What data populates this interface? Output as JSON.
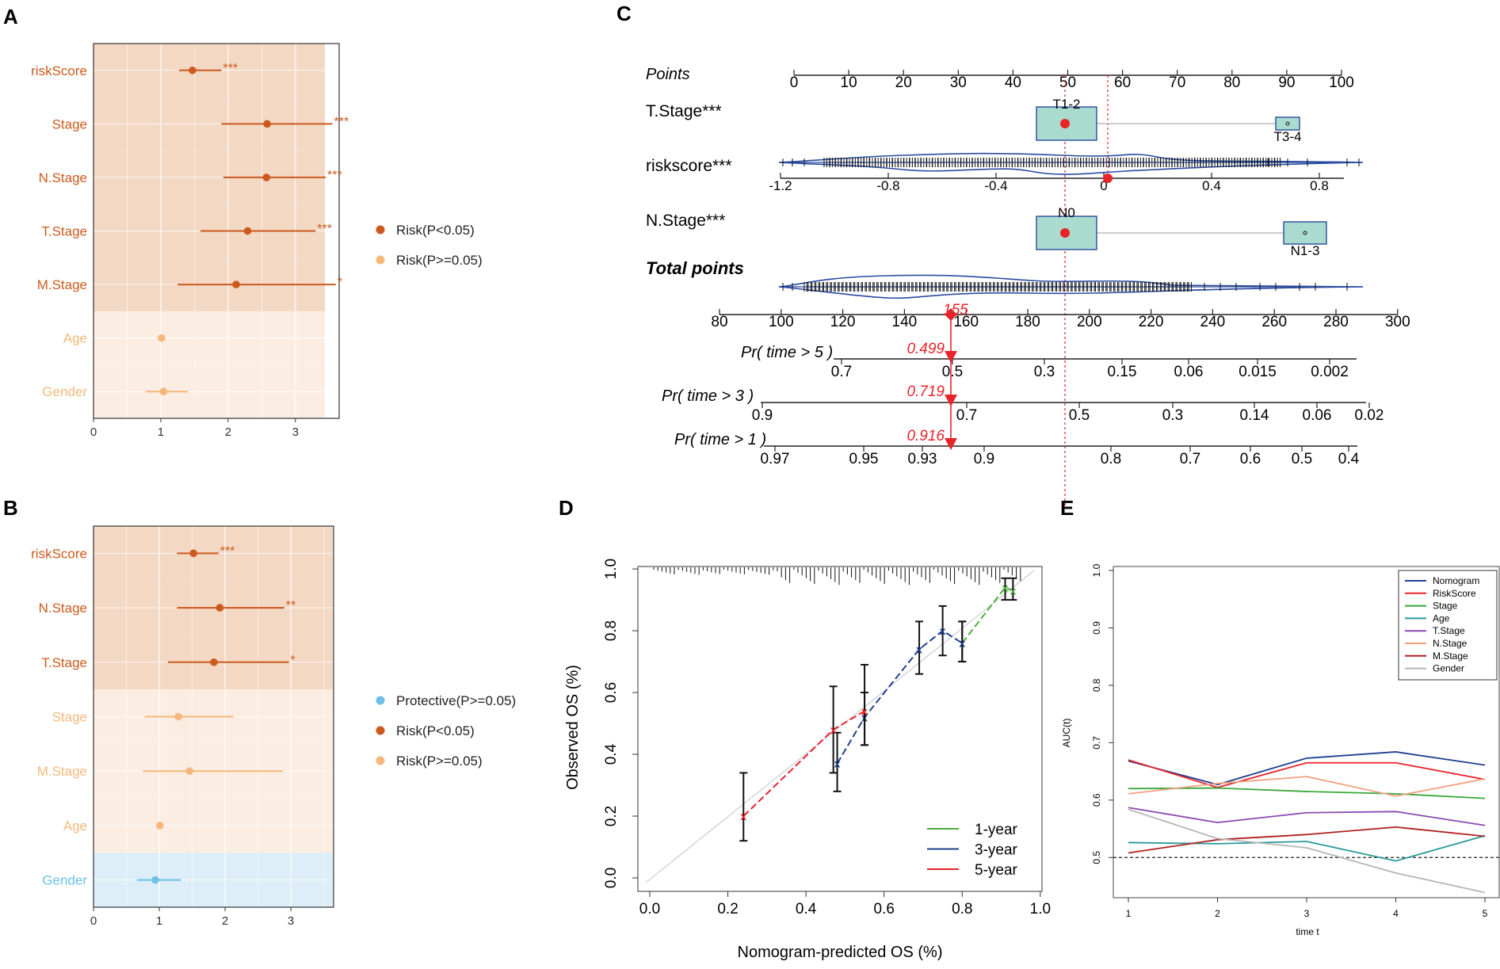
{
  "colors": {
    "risk": "#cc5a1e",
    "risk_ns": "#f5b87a",
    "protective": "#6fc0ea",
    "band_risk": "#f3d8c4",
    "band_ns": "#fbede2",
    "band_prot": "#ddeef8",
    "nomo_red": "#e8232a",
    "nomo_blue": "#2a4ba0",
    "box_fill": "#a9dccf"
  },
  "panel_a": {
    "letter": "A",
    "rows": [
      {
        "label": "riskScore",
        "hr": 1.47,
        "lo": 1.27,
        "hi": 1.9,
        "sig": "***",
        "group": "risk"
      },
      {
        "label": "Stage",
        "hr": 2.58,
        "lo": 1.9,
        "hi": 3.55,
        "sig": "***",
        "group": "risk"
      },
      {
        "label": "N.Stage",
        "hr": 2.57,
        "lo": 1.93,
        "hi": 3.45,
        "sig": "***",
        "group": "risk"
      },
      {
        "label": "T.Stage",
        "hr": 2.29,
        "lo": 1.59,
        "hi": 3.3,
        "sig": "***",
        "group": "risk"
      },
      {
        "label": "M.Stage",
        "hr": 2.12,
        "lo": 1.25,
        "hi": 3.6,
        "sig": "*",
        "group": "risk"
      },
      {
        "label": "Age",
        "hr": 1.01,
        "lo": 0.99,
        "hi": 1.02,
        "sig": "",
        "group": "risk_ns"
      },
      {
        "label": "Gender",
        "hr": 1.04,
        "lo": 0.78,
        "hi": 1.4,
        "sig": "",
        "group": "risk_ns"
      }
    ],
    "x_ticks": [
      "0",
      "1",
      "2",
      "3"
    ],
    "legend": [
      {
        "label": "Risk(P<0.05)",
        "group": "risk"
      },
      {
        "label": "Risk(P>=0.05)",
        "group": "risk_ns"
      }
    ]
  },
  "panel_b": {
    "letter": "B",
    "rows": [
      {
        "label": "riskScore",
        "hr": 1.52,
        "lo": 1.27,
        "hi": 1.9,
        "sig": "***",
        "group": "risk"
      },
      {
        "label": "N.Stage",
        "hr": 1.92,
        "lo": 1.27,
        "hi": 2.9,
        "sig": "**",
        "group": "risk"
      },
      {
        "label": "T.Stage",
        "hr": 1.83,
        "lo": 1.13,
        "hi": 2.97,
        "sig": "*",
        "group": "risk"
      },
      {
        "label": "Stage",
        "hr": 1.29,
        "lo": 0.78,
        "hi": 2.13,
        "sig": "",
        "group": "risk_ns"
      },
      {
        "label": "M.Stage",
        "hr": 1.46,
        "lo": 0.75,
        "hi": 2.88,
        "sig": "",
        "group": "risk_ns"
      },
      {
        "label": "Age",
        "hr": 1.01,
        "lo": 0.99,
        "hi": 1.03,
        "sig": "",
        "group": "risk_ns"
      },
      {
        "label": "Gender",
        "hr": 0.94,
        "lo": 0.66,
        "hi": 1.33,
        "sig": "",
        "group": "protective"
      }
    ],
    "x_ticks": [
      "0",
      "1",
      "2",
      "3"
    ],
    "legend": [
      {
        "label": "Protective(P>=0.05)",
        "group": "protective"
      },
      {
        "label": "Risk(P<0.05)",
        "group": "risk"
      },
      {
        "label": "Risk(P>=0.05)",
        "group": "risk_ns"
      }
    ]
  },
  "panel_c": {
    "letter": "C",
    "points_label": "Points",
    "points_ticks": [
      "0",
      "10",
      "20",
      "30",
      "40",
      "50",
      "60",
      "70",
      "80",
      "90",
      "100"
    ],
    "tstage_label": "T.Stage***",
    "tstage_levels": [
      "T1-2",
      "T3-4"
    ],
    "riskscore_label": "riskscore***",
    "riskscore_ticks": [
      "-1.2",
      "-0.8",
      "-0.4",
      "0",
      "0.4",
      "0.8"
    ],
    "nstage_label": "N.Stage***",
    "nstage_levels": [
      "N0",
      "N1-3"
    ],
    "total_label": "Total points",
    "total_ticks": [
      "80",
      "100",
      "120",
      "140",
      "160",
      "180",
      "200",
      "220",
      "240",
      "260",
      "280",
      "300"
    ],
    "total_value": "155",
    "prob_rows": [
      {
        "label": "Pr( time > 5 )",
        "value": "0.499",
        "ticks": [
          "0.7",
          "0.5",
          "0.3",
          "0.15",
          "0.06",
          "0.015",
          "0.002"
        ]
      },
      {
        "label": "Pr( time > 3 )",
        "value": "0.719",
        "ticks": [
          "0.9",
          "0.7",
          "0.5",
          "0.3",
          "0.14",
          "0.06",
          "0.02"
        ]
      },
      {
        "label": "Pr( time > 1 )",
        "value": "0.916",
        "ticks": [
          "0.97",
          "0.95",
          "0.93",
          "0.9",
          "0.8",
          "0.7",
          "0.6",
          "0.5",
          "0.4"
        ]
      }
    ]
  },
  "chart_data": [
    {
      "type": "calibration",
      "panel": "D",
      "xlabel": "Nomogram-predicted OS (%)",
      "ylabel": "Observed OS (%)",
      "xlim": [
        0,
        1
      ],
      "ylim": [
        0,
        1
      ],
      "x_ticks": [
        "0.0",
        "0.2",
        "0.4",
        "0.6",
        "0.8",
        "1.0"
      ],
      "y_ticks": [
        "0.0",
        "0.2",
        "0.4",
        "0.6",
        "0.8",
        "1.0"
      ],
      "series": [
        {
          "name": "1-year",
          "color": "#4caf3c",
          "points": [
            {
              "x": 0.8,
              "y": 0.76,
              "lo": 0.7,
              "hi": 0.83
            },
            {
              "x": 0.91,
              "y": 0.94,
              "lo": 0.9,
              "hi": 0.97
            },
            {
              "x": 0.93,
              "y": 0.93,
              "lo": 0.9,
              "hi": 0.97
            }
          ]
        },
        {
          "name": "3-year",
          "color": "#1f3f8f",
          "points": [
            {
              "x": 0.48,
              "y": 0.37,
              "lo": 0.28,
              "hi": 0.47
            },
            {
              "x": 0.55,
              "y": 0.52,
              "lo": 0.43,
              "hi": 0.6
            },
            {
              "x": 0.69,
              "y": 0.74,
              "lo": 0.66,
              "hi": 0.83
            },
            {
              "x": 0.75,
              "y": 0.8,
              "lo": 0.72,
              "hi": 0.88
            },
            {
              "x": 0.8,
              "y": 0.76,
              "lo": 0.7,
              "hi": 0.83
            }
          ]
        },
        {
          "name": "5-year",
          "color": "#e8232a",
          "points": [
            {
              "x": 0.24,
              "y": 0.2,
              "lo": 0.12,
              "hi": 0.34
            },
            {
              "x": 0.47,
              "y": 0.48,
              "lo": 0.34,
              "hi": 0.62
            },
            {
              "x": 0.55,
              "y": 0.54,
              "lo": 0.43,
              "hi": 0.69
            }
          ]
        }
      ]
    },
    {
      "type": "line",
      "panel": "E",
      "xlabel": "time t",
      "ylabel": "AUC(t)",
      "x": [
        1,
        2,
        3,
        4,
        5
      ],
      "ylim": [
        0.43,
        1.0
      ],
      "x_ticks": [
        "1",
        "2",
        "3",
        "4",
        "5"
      ],
      "y_ticks": [
        "0.5",
        "0.6",
        "0.7",
        "0.8",
        "0.9",
        "1.0"
      ],
      "reference": 0.5,
      "series": [
        {
          "name": "Nomogram",
          "color": "#1f3f8f",
          "values": [
            0.668,
            0.627,
            0.673,
            0.684,
            0.661
          ]
        },
        {
          "name": "RiskScore",
          "color": "#e8232a",
          "values": [
            0.67,
            0.622,
            0.665,
            0.665,
            0.636
          ]
        },
        {
          "name": "Stage",
          "color": "#3aa83a",
          "values": [
            0.62,
            0.621,
            0.615,
            0.611,
            0.603
          ]
        },
        {
          "name": "Age",
          "color": "#2a9a9a",
          "values": [
            0.526,
            0.524,
            0.528,
            0.494,
            0.538
          ]
        },
        {
          "name": "T.Stage",
          "color": "#8a4ab0",
          "values": [
            0.587,
            0.561,
            0.578,
            0.58,
            0.556
          ]
        },
        {
          "name": "N.Stage",
          "color": "#f0a080",
          "values": [
            0.611,
            0.629,
            0.641,
            0.607,
            0.637
          ]
        },
        {
          "name": "M.Stage",
          "color": "#b02020",
          "values": [
            0.508,
            0.531,
            0.54,
            0.553,
            0.537
          ]
        },
        {
          "name": "Gender",
          "color": "#b5b5b5",
          "values": [
            0.584,
            0.533,
            0.517,
            0.473,
            0.439
          ]
        }
      ]
    }
  ],
  "panel_d": {
    "letter": "D"
  },
  "panel_e": {
    "letter": "E"
  }
}
